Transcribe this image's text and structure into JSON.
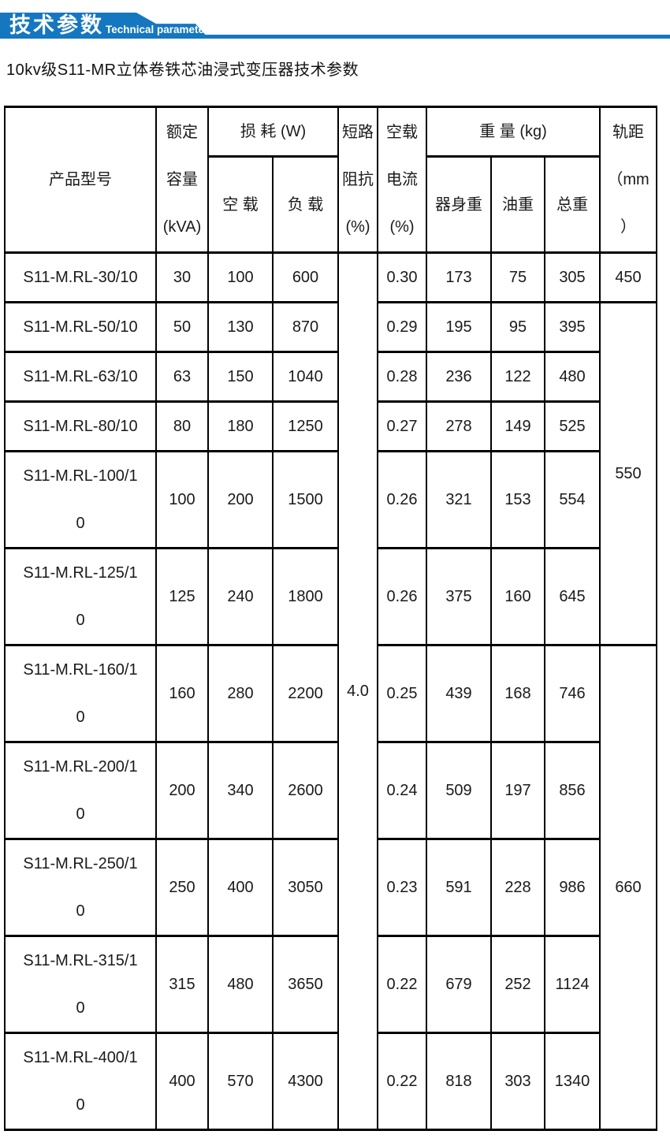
{
  "banner": {
    "title_cn": "技术参数",
    "title_en": "Technical parameter",
    "color": "#1577c0"
  },
  "page_title": "10kv级S11-MR立体卷铁芯油浸式变压器技术参数",
  "table": {
    "headers": {
      "model": "产品型号",
      "capacity_lines": [
        "额定",
        "容量",
        "(kVA)"
      ],
      "loss_group": "损 耗 (W)",
      "no_load_loss": "空 载",
      "load_loss": "负 载",
      "impedance_lines": [
        "短路",
        "阻抗",
        "(%)"
      ],
      "no_load_current_lines": [
        "空载",
        "电流",
        "(%)"
      ],
      "weight_group": "重 量 (kg)",
      "body_weight": "器身重",
      "oil_weight": "油重",
      "total_weight": "总重",
      "gauge_lines": [
        "轨距",
        "（mm",
        "）"
      ]
    },
    "impedance_value": "4.0",
    "rows": [
      {
        "model": "S11-M.RL-30/10",
        "capacity": "30",
        "no_load_loss": "100",
        "load_loss": "600",
        "no_load_current": "0.30",
        "body_weight": "173",
        "oil_weight": "75",
        "total_weight": "305"
      },
      {
        "model": "S11-M.RL-50/10",
        "capacity": "50",
        "no_load_loss": "130",
        "load_loss": "870",
        "no_load_current": "0.29",
        "body_weight": "195",
        "oil_weight": "95",
        "total_weight": "395"
      },
      {
        "model": "S11-M.RL-63/10",
        "capacity": "63",
        "no_load_loss": "150",
        "load_loss": "1040",
        "no_load_current": "0.28",
        "body_weight": "236",
        "oil_weight": "122",
        "total_weight": "480"
      },
      {
        "model": "S11-M.RL-80/10",
        "capacity": "80",
        "no_load_loss": "180",
        "load_loss": "1250",
        "no_load_current": "0.27",
        "body_weight": "278",
        "oil_weight": "149",
        "total_weight": "525"
      },
      {
        "model": "S11-M.RL-100/10",
        "capacity": "100",
        "no_load_loss": "200",
        "load_loss": "1500",
        "no_load_current": "0.26",
        "body_weight": "321",
        "oil_weight": "153",
        "total_weight": "554"
      },
      {
        "model": "S11-M.RL-125/10",
        "capacity": "125",
        "no_load_loss": "240",
        "load_loss": "1800",
        "no_load_current": "0.26",
        "body_weight": "375",
        "oil_weight": "160",
        "total_weight": "645"
      },
      {
        "model": "S11-M.RL-160/10",
        "capacity": "160",
        "no_load_loss": "280",
        "load_loss": "2200",
        "no_load_current": "0.25",
        "body_weight": "439",
        "oil_weight": "168",
        "total_weight": "746"
      },
      {
        "model": "S11-M.RL-200/10",
        "capacity": "200",
        "no_load_loss": "340",
        "load_loss": "2600",
        "no_load_current": "0.24",
        "body_weight": "509",
        "oil_weight": "197",
        "total_weight": "856"
      },
      {
        "model": "S11-M.RL-250/10",
        "capacity": "250",
        "no_load_loss": "400",
        "load_loss": "3050",
        "no_load_current": "0.23",
        "body_weight": "591",
        "oil_weight": "228",
        "total_weight": "986"
      },
      {
        "model": "S11-M.RL-315/10",
        "capacity": "315",
        "no_load_loss": "480",
        "load_loss": "3650",
        "no_load_current": "0.22",
        "body_weight": "679",
        "oil_weight": "252",
        "total_weight": "1124"
      },
      {
        "model": "S11-M.RL-400/10",
        "capacity": "400",
        "no_load_loss": "570",
        "load_loss": "4300",
        "no_load_current": "0.22",
        "body_weight": "818",
        "oil_weight": "303",
        "total_weight": "1340"
      }
    ],
    "gauge_spans": [
      {
        "value": "450",
        "row_count": 1
      },
      {
        "value": "550",
        "row_count": 5
      },
      {
        "value": "660",
        "row_count": 5
      }
    ]
  }
}
